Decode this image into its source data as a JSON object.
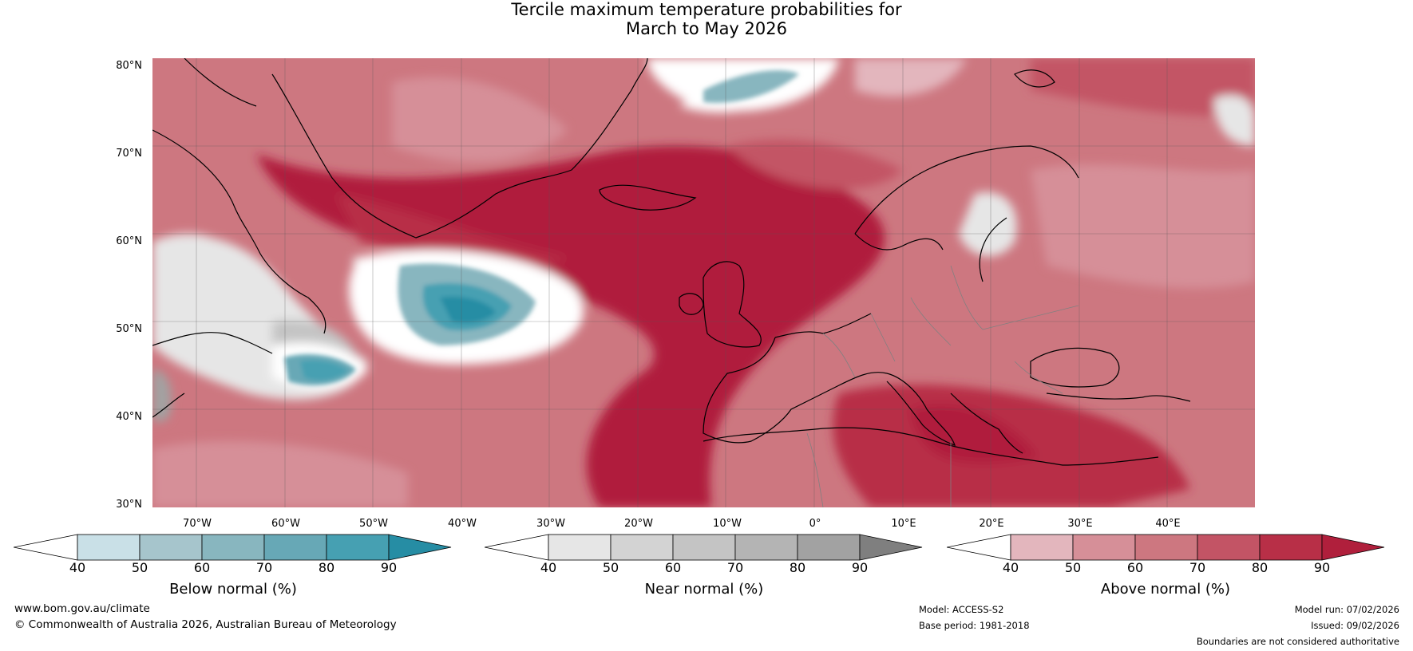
{
  "title_line1": "Tercile maximum temperature probabilities for",
  "title_line2": "March to May 2026",
  "lat_labels": [
    "80°N",
    "70°N",
    "60°N",
    "50°N",
    "40°N",
    "30°N"
  ],
  "lon_labels": [
    "70°W",
    "60°W",
    "50°W",
    "40°W",
    "30°W",
    "20°W",
    "10°W",
    "0°",
    "10°E",
    "20°E",
    "30°E",
    "40°E"
  ],
  "legends": [
    {
      "label": "Below normal (%)",
      "ticks": [
        "40",
        "50",
        "60",
        "70",
        "80",
        "90"
      ],
      "colors": [
        "#ffffff",
        "#c9e0e7",
        "#a6c5cc",
        "#88b6bf",
        "#67a8b6",
        "#46a0b2",
        "#268da4"
      ]
    },
    {
      "label": "Near normal (%)",
      "ticks": [
        "40",
        "50",
        "60",
        "70",
        "80",
        "90"
      ],
      "colors": [
        "#ffffff",
        "#e6e6e6",
        "#d3d3d3",
        "#c4c4c4",
        "#b4b4b4",
        "#a2a2a2",
        "#7f7f7f"
      ]
    },
    {
      "label": "Above normal (%)",
      "ticks": [
        "40",
        "50",
        "60",
        "70",
        "80",
        "90"
      ],
      "colors": [
        "#ffffff",
        "#e3b6bd",
        "#d68f98",
        "#cd7780",
        "#c35465",
        "#b82f47",
        "#b01f3c"
      ]
    }
  ],
  "footer": {
    "website": "www.bom.gov.au/climate",
    "copyright": "© Commonwealth of Australia 2026, Australian Bureau of Meteorology",
    "model": "Model: ACCESS-S2",
    "base_period": "Base period: 1981-2018",
    "model_run": "Model run: 07/02/2026",
    "issued": "Issued: 09/02/2026",
    "boundaries": "Boundaries are not considered authoritative"
  }
}
